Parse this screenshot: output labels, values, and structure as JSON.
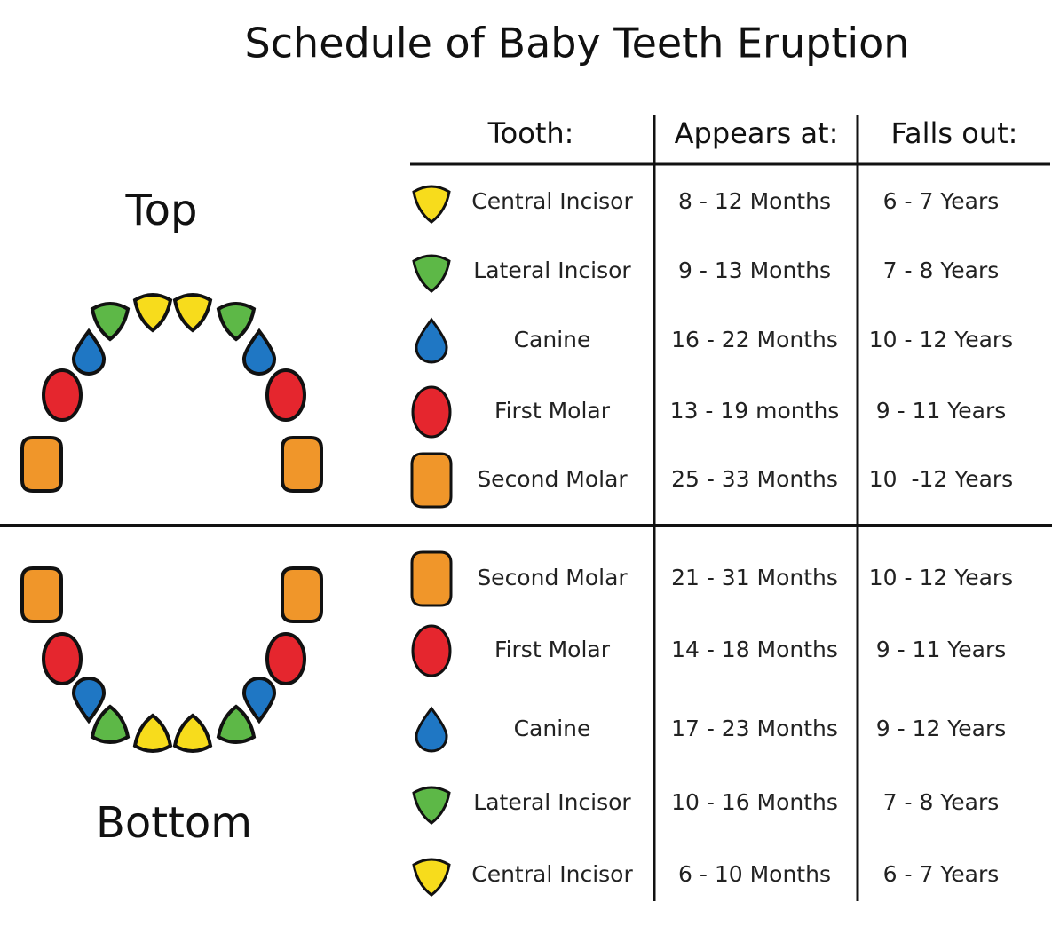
{
  "title": "Schedule of Baby Teeth Eruption",
  "top_label": "Top",
  "bottom_label": "Bottom",
  "headers": [
    "Tooth:",
    "Appears at:",
    "Falls out:"
  ],
  "top": {
    "rows": [
      {
        "tooth": "Central Incisor",
        "appears": "8 - 12 Months",
        "falls_out": "6 - 7 Years",
        "color": "#f7dc1c"
      },
      {
        "tooth": "Lateral Incisor",
        "appears": "9 - 13 Months",
        "falls_out": "7 - 8 Years",
        "color": "#5db847"
      },
      {
        "tooth": "Canine",
        "appears": "16 - 22 Months",
        "falls_out": "10 - 12 Years",
        "color": "#1f77c4"
      },
      {
        "tooth": "First Molar",
        "appears": "13 - 19 months",
        "falls_out": "9 - 11 Years",
        "color": "#e5262e"
      },
      {
        "tooth": "Second Molar",
        "appears": "25 - 33 Months",
        "falls_out": "10  -12 Years",
        "color": "#f0962a"
      }
    ]
  },
  "bottom": {
    "rows": [
      {
        "tooth": "Second Molar",
        "appears": "21 - 31 Months",
        "falls_out": "10 - 12 Years",
        "color": "#f0962a"
      },
      {
        "tooth": "First Molar",
        "appears": "14 - 18 Months",
        "falls_out": "9 - 11 Years",
        "color": "#e5262e"
      },
      {
        "tooth": "Canine",
        "appears": "17 - 23 Months",
        "falls_out": "9 - 12 Years",
        "color": "#1f77c4"
      },
      {
        "tooth": "Lateral Incisor",
        "appears": "10 - 16 Months",
        "falls_out": "7 - 8 Years",
        "color": "#5db847"
      },
      {
        "tooth": "Central Incisor",
        "appears": "6 - 10 Months",
        "falls_out": "6 - 7 Years",
        "color": "#f7dc1c"
      }
    ]
  }
}
